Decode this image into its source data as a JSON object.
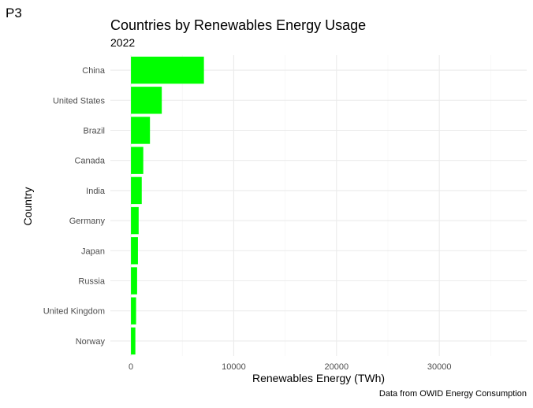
{
  "panel_tag": "P3",
  "chart_data": {
    "type": "bar",
    "orientation": "horizontal",
    "title": "Countries by Renewables Energy Usage",
    "subtitle": "2022",
    "xlabel": "Renewables Energy (TWh)",
    "ylabel": "Country",
    "caption": "Data from OWID Energy Consumption",
    "categories": [
      "China",
      "United States",
      "Brazil",
      "Canada",
      "India",
      "Germany",
      "Japan",
      "Russia",
      "United Kingdom",
      "Norway"
    ],
    "values": [
      7100,
      3000,
      1850,
      1200,
      1050,
      750,
      680,
      600,
      500,
      430
    ],
    "xlim": [
      -2000,
      38500
    ],
    "xticks": [
      0,
      10000,
      20000,
      30000
    ],
    "xtick_labels": [
      "0",
      "10000",
      "20000",
      "30000"
    ],
    "bar_color": "#00ff00",
    "grid": true,
    "legend": "none"
  }
}
